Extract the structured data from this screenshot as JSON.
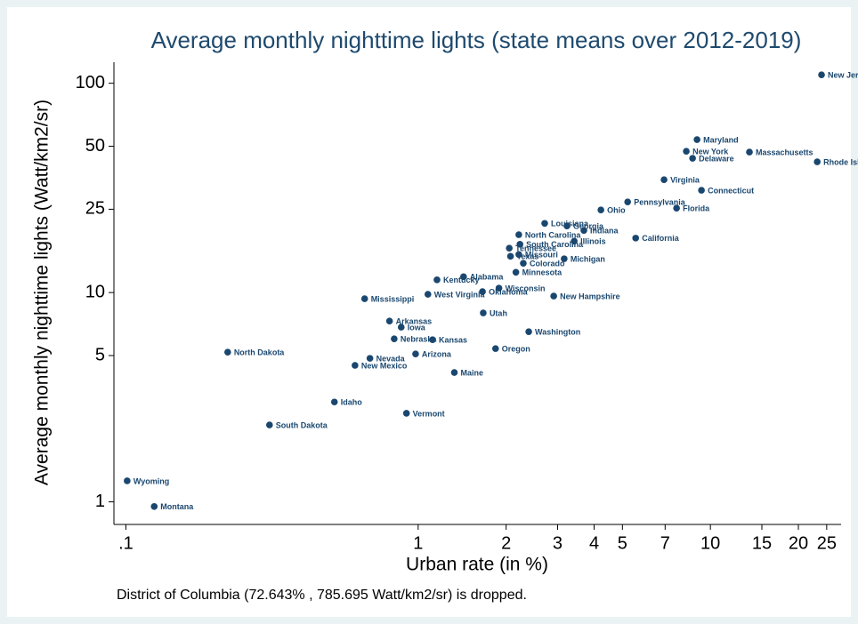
{
  "chart_data": {
    "type": "scatter",
    "title": "Average monthly nighttime lights (state means over 2012-2019)",
    "xlabel": "Urban rate (in %)",
    "ylabel": "Average monthly nighttime lights (Watt/km2/sr)",
    "note": "District of Columbia (72.643% , 785.695 Watt/km2/sr) is dropped.",
    "xlog": true,
    "ylog": true,
    "grid": false,
    "color": "#1a476f",
    "xlim": [
      0.091,
      28
    ],
    "ylim": [
      0.78,
      126
    ],
    "xticks": [
      {
        "value": 0.1,
        "label": ".1"
      },
      1,
      2,
      3,
      4,
      5,
      7,
      10,
      15,
      20,
      25
    ],
    "yticks": [
      1,
      5,
      10,
      25,
      50,
      100
    ],
    "labels": [
      "New Jersey",
      "Maryland",
      "New York",
      "Delaware",
      "Massachusetts",
      "Rhode Island",
      "Virginia",
      "Connecticut",
      "Pennsylvania",
      "Florida",
      "Ohio",
      "Louisiana",
      "Georgia",
      "Indiana",
      "North Carolina",
      "South Carolina",
      "Illinois",
      "California",
      "Tennessee",
      "Missouri",
      "Texas",
      "Colorado",
      "Michigan",
      "Minnesota",
      "Alabama",
      "Kentucky",
      "Wisconsin",
      "Oklahoma",
      "West Virginia",
      "New Hampshire",
      "Mississippi",
      "Utah",
      "Arkansas",
      "Iowa",
      "Washington",
      "Nebraska",
      "Kansas",
      "Oregon",
      "North Dakota",
      "Arizona",
      "Nevada",
      "New Mexico",
      "Maine",
      "Idaho",
      "Vermont",
      "South Dakota",
      "Wyoming",
      "Montana"
    ],
    "x": [
      24.0,
      9.0,
      8.27,
      8.69,
      13.6,
      23.2,
      6.94,
      9.32,
      5.21,
      7.66,
      4.22,
      2.71,
      3.23,
      3.69,
      2.21,
      2.23,
      3.42,
      5.55,
      2.05,
      2.21,
      2.07,
      2.29,
      3.16,
      2.16,
      1.43,
      1.16,
      1.89,
      1.66,
      1.08,
      2.91,
      0.656,
      1.67,
      0.798,
      0.875,
      2.39,
      0.828,
      1.12,
      1.84,
      0.223,
      0.98,
      0.684,
      0.608,
      1.33,
      0.517,
      0.912,
      0.31,
      0.101,
      0.125
    ],
    "values": [
      109.7,
      53.8,
      47.3,
      43.8,
      46.9,
      42.1,
      34.6,
      30.8,
      27.1,
      25.3,
      24.8,
      21.4,
      20.8,
      19.8,
      18.9,
      17.0,
      17.6,
      18.2,
      16.3,
      15.2,
      14.9,
      13.8,
      14.5,
      12.5,
      11.9,
      11.5,
      10.5,
      10.1,
      9.81,
      9.62,
      9.34,
      7.99,
      7.31,
      6.83,
      6.5,
      6.01,
      5.95,
      5.4,
      5.19,
      5.09,
      4.85,
      4.49,
      4.15,
      3.0,
      2.65,
      2.33,
      1.26,
      0.95
    ]
  }
}
